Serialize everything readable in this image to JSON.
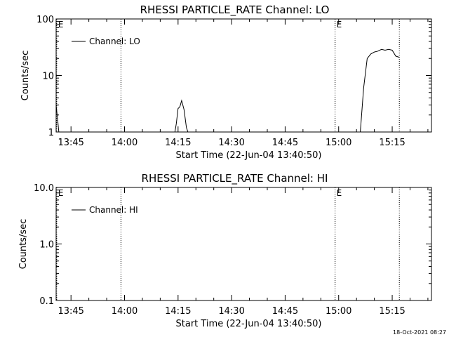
{
  "chart_data": [
    {
      "type": "line",
      "title": "RHESSI PARTICLE_RATE Channel: LO",
      "xlabel": "Start Time (22-Jun-04 13:40:50)",
      "ylabel": "Counts/sec",
      "yscale": "log",
      "ylim": [
        1,
        100
      ],
      "xlim_minutes": [
        "13:40:50",
        "15:26:00"
      ],
      "x_tick_labels": [
        "13:45",
        "14:00",
        "14:15",
        "14:30",
        "14:45",
        "15:00",
        "15:15"
      ],
      "y_tick_labels": [
        "1",
        "10",
        "100"
      ],
      "legend": {
        "placement": "top-left",
        "entries": [
          "Channel: LO"
        ]
      },
      "markers": [
        {
          "label": "E",
          "time": "13:41"
        },
        {
          "label": "",
          "time": "13:59"
        },
        {
          "label": "E",
          "time": "14:59"
        },
        {
          "label": "",
          "time": "15:17"
        }
      ],
      "series": [
        {
          "name": "Channel: LO",
          "points": [
            [
              "13:40:50",
              3.0
            ],
            [
              "13:41:20",
              1.5
            ],
            [
              "13:41:40",
              0.9
            ],
            [
              "14:14:00",
              0.9
            ],
            [
              "14:14:30",
              1.4
            ],
            [
              "14:15:00",
              2.6
            ],
            [
              "14:15:30",
              2.8
            ],
            [
              "14:16:00",
              3.6
            ],
            [
              "14:16:40",
              2.5
            ],
            [
              "14:17:20",
              1.2
            ],
            [
              "14:18:00",
              0.9
            ],
            [
              "15:06:00",
              0.9
            ],
            [
              "15:07:00",
              6.0
            ],
            [
              "15:08:00",
              20.0
            ],
            [
              "15:09:00",
              24.0
            ],
            [
              "15:10:00",
              26.0
            ],
            [
              "15:11:00",
              27.0
            ],
            [
              "15:12:00",
              29.0
            ],
            [
              "15:13:00",
              28.0
            ],
            [
              "15:14:00",
              29.0
            ],
            [
              "15:15:00",
              28.0
            ],
            [
              "15:16:00",
              22.0
            ],
            [
              "15:17:00",
              21.0
            ]
          ]
        }
      ]
    },
    {
      "type": "line",
      "title": "RHESSI PARTICLE_RATE Channel: HI",
      "xlabel": "Start Time (22-Jun-04 13:40:50)",
      "ylabel": "Counts/sec",
      "yscale": "log",
      "ylim": [
        0.1,
        10
      ],
      "xlim_minutes": [
        "13:40:50",
        "15:26:00"
      ],
      "x_tick_labels": [
        "13:45",
        "14:00",
        "14:15",
        "14:30",
        "14:45",
        "15:00",
        "15:15"
      ],
      "y_tick_labels": [
        "0.1",
        "1.0",
        "10.0"
      ],
      "legend": {
        "placement": "top-left",
        "entries": [
          "Channel: HI"
        ]
      },
      "markers": [
        {
          "label": "E",
          "time": "13:41"
        },
        {
          "label": "",
          "time": "13:59"
        },
        {
          "label": "E",
          "time": "14:59"
        },
        {
          "label": "",
          "time": "15:17"
        }
      ],
      "series": [
        {
          "name": "Channel: HI",
          "points": []
        }
      ]
    }
  ],
  "footer": {
    "timestamp": "18-Oct-2021 08:27"
  }
}
